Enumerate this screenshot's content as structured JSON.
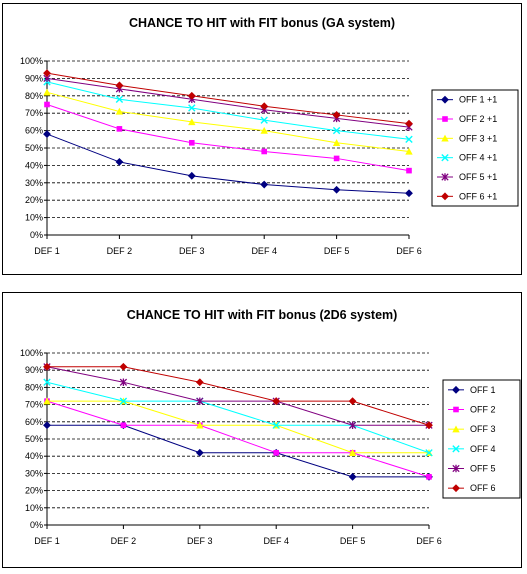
{
  "chart_data": [
    {
      "type": "line",
      "title": "CHANCE TO HIT with FIT bonus (GA system)",
      "categories": [
        "DEF 1",
        "DEF 2",
        "DEF 3",
        "DEF 4",
        "DEF 5",
        "DEF 6"
      ],
      "ylim": [
        0,
        100
      ],
      "yticks": [
        "0%",
        "10%",
        "20%",
        "30%",
        "40%",
        "50%",
        "60%",
        "70%",
        "80%",
        "90%",
        "100%"
      ],
      "grid": "dashed horizontal",
      "legend_position": "right",
      "series": [
        {
          "name": "OFF 1 +1",
          "color": "#000080",
          "marker": "diamond",
          "values": [
            58,
            42,
            34,
            29,
            26,
            24
          ]
        },
        {
          "name": "OFF 2 +1",
          "color": "#ff00ff",
          "marker": "square",
          "values": [
            75,
            61,
            53,
            48,
            44,
            37
          ]
        },
        {
          "name": "OFF 3 +1",
          "color": "#ffff00",
          "marker": "triangle",
          "values": [
            82,
            71,
            65,
            60,
            53,
            48
          ]
        },
        {
          "name": "OFF 4 +1",
          "color": "#00ffff",
          "marker": "x",
          "values": [
            88,
            78,
            73,
            66,
            60,
            55
          ]
        },
        {
          "name": "OFF 5 +1",
          "color": "#800080",
          "marker": "star",
          "values": [
            90,
            84,
            78,
            72,
            67,
            62
          ]
        },
        {
          "name": "OFF 6 +1",
          "color": "#c00000",
          "marker": "diamond",
          "values": [
            93,
            86,
            80,
            74,
            69,
            64
          ]
        }
      ]
    },
    {
      "type": "line",
      "title": "CHANCE TO HIT with FIT bonus (2D6 system)",
      "categories": [
        "DEF 1",
        "DEF 2",
        "DEF 3",
        "DEF 4",
        "DEF 5",
        "DEF 6"
      ],
      "ylim": [
        0,
        100
      ],
      "yticks": [
        "0%",
        "10%",
        "20%",
        "30%",
        "40%",
        "50%",
        "60%",
        "70%",
        "80%",
        "90%",
        "100%"
      ],
      "grid": "dashed horizontal",
      "legend_position": "right",
      "series": [
        {
          "name": "OFF 1",
          "color": "#000080",
          "marker": "diamond",
          "values": [
            58,
            58,
            42,
            42,
            28,
            28
          ]
        },
        {
          "name": "OFF 2",
          "color": "#ff00ff",
          "marker": "square",
          "values": [
            72,
            58,
            58,
            42,
            42,
            28
          ]
        },
        {
          "name": "OFF 3",
          "color": "#ffff00",
          "marker": "triangle",
          "values": [
            72,
            72,
            58,
            58,
            42,
            42
          ]
        },
        {
          "name": "OFF 4",
          "color": "#00ffff",
          "marker": "x",
          "values": [
            83,
            72,
            72,
            58,
            58,
            42
          ]
        },
        {
          "name": "OFF 5",
          "color": "#800080",
          "marker": "star",
          "values": [
            92,
            83,
            72,
            72,
            58,
            58
          ]
        },
        {
          "name": "OFF 6",
          "color": "#c00000",
          "marker": "diamond",
          "values": [
            92,
            92,
            83,
            72,
            72,
            58
          ]
        }
      ]
    }
  ]
}
